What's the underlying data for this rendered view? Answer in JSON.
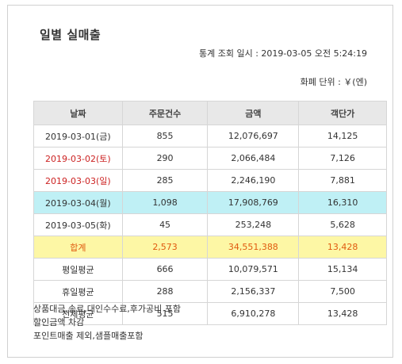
{
  "title": "일별 실매출",
  "query_time": "통계 조회 일시 : 2019-03-05 오전 5:24:19",
  "currency": "화폐 단위 : ￥(엔)",
  "table": {
    "headers": [
      "날짜",
      "주문건수",
      "금액",
      "객단가"
    ],
    "rows": [
      {
        "date": "2019-03-01(금)",
        "orders": "855",
        "amount": "12,076,697",
        "per_customer": "14,125"
      },
      {
        "date": "2019-03-02(토)",
        "orders": "290",
        "amount": "2,066,484",
        "per_customer": "7,126"
      },
      {
        "date": "2019-03-03(일)",
        "orders": "285",
        "amount": "2,246,190",
        "per_customer": "7,881"
      },
      {
        "date": "2019-03-04(월)",
        "orders": "1,098",
        "amount": "17,908,769",
        "per_customer": "16,310"
      },
      {
        "date": "2019-03-05(화)",
        "orders": "45",
        "amount": "253,248",
        "per_customer": "5,628"
      },
      {
        "date": "합계",
        "orders": "2,573",
        "amount": "34,551,388",
        "per_customer": "13,428"
      },
      {
        "date": "평일평균",
        "orders": "666",
        "amount": "10,079,571",
        "per_customer": "15,134"
      },
      {
        "date": "휴일평균",
        "orders": "288",
        "amount": "2,156,337",
        "per_customer": "7,500"
      },
      {
        "date": "전체평균",
        "orders": "515",
        "amount": "6,910,278",
        "per_customer": "13,428"
      }
    ]
  },
  "notes": [
    "상품대금,송료,대인수수료,후가공비 포함",
    "할인금액 차감",
    "포인트매출 제외,샘플매출포함"
  ],
  "colors": {
    "weekend_text": "#cc2222",
    "highlight_row": "#bff0f5",
    "total_row_bg": "#fdf7a5",
    "total_row_text": "#e05a10",
    "header_bg": "#e8e8e8"
  }
}
